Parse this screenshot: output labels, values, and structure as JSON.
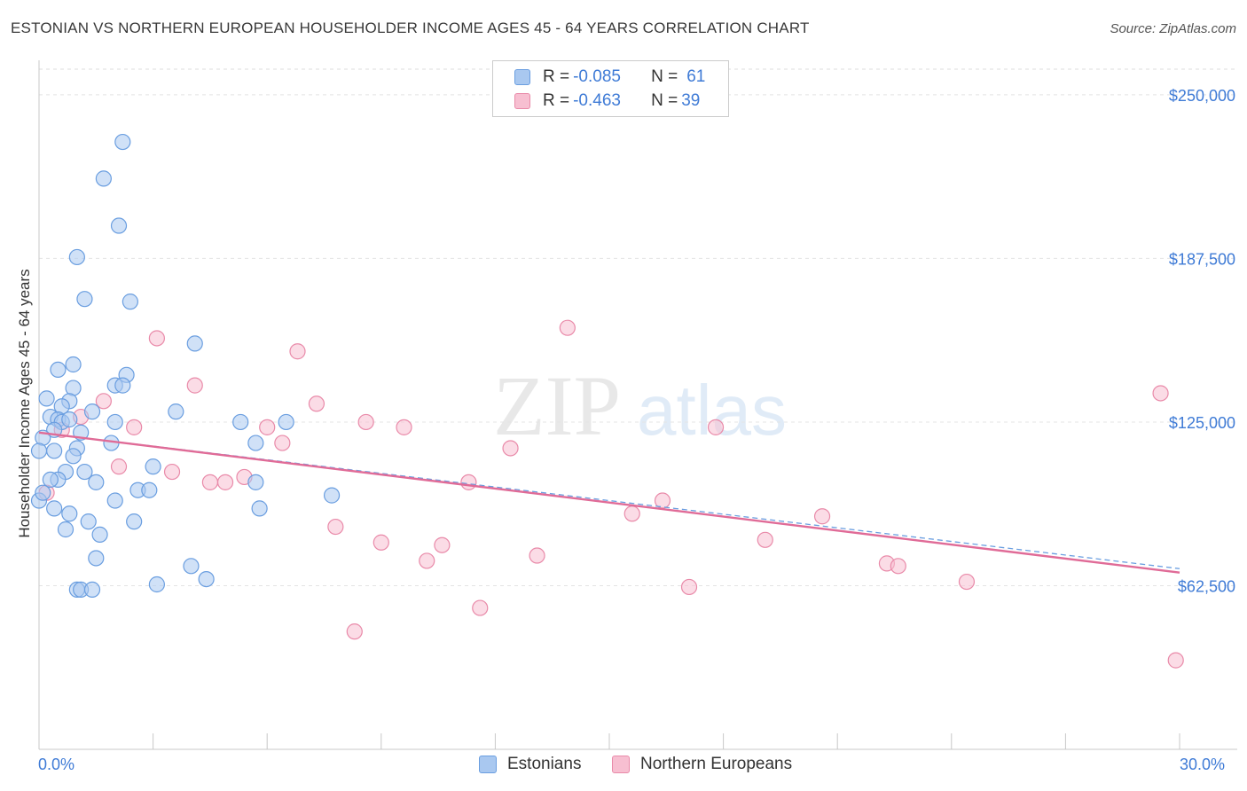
{
  "title": "ESTONIAN VS NORTHERN EUROPEAN HOUSEHOLDER INCOME AGES 45 - 64 YEARS CORRELATION CHART",
  "source": "Source: ZipAtlas.com",
  "watermark": {
    "zip": "ZIP",
    "atlas": "atlas"
  },
  "legend": {
    "rows": [
      {
        "r_label": "R = ",
        "r_value": "-0.085",
        "n_label": "N = ",
        "n_value": "61"
      },
      {
        "r_label": "R = ",
        "r_value": "-0.463",
        "n_label": "N = ",
        "n_value": "39"
      }
    ]
  },
  "bottom_legend": {
    "estonians": "Estonians",
    "northern": "Northern Europeans"
  },
  "colors": {
    "blue_fill": "#a9c8f0",
    "blue_stroke": "#6a9ee0",
    "pink_fill": "#f7bfd1",
    "pink_stroke": "#e98aa9",
    "pink_line": "#e06b97",
    "blue_line": "#6a9ee0",
    "axis_label": "#3f7bd6"
  },
  "chart_data": {
    "type": "scatter",
    "title": "ESTONIAN VS NORTHERN EUROPEAN HOUSEHOLDER INCOME AGES 45 - 64 YEARS CORRELATION CHART",
    "xlabel": "",
    "ylabel": "Householder Income Ages 45 - 64 years",
    "xlim": [
      0,
      30
    ],
    "ylim": [
      0,
      262500
    ],
    "x_tick_labels": [
      "0.0%",
      "30.0%"
    ],
    "y_ticks": [
      62500,
      125000,
      187500,
      250000
    ],
    "y_tick_labels": [
      "$62,500",
      "$125,000",
      "$187,500",
      "$250,000"
    ],
    "series": [
      {
        "name": "Estonians",
        "r": -0.085,
        "n": 61,
        "trend": {
          "x": [
            0,
            30
          ],
          "y": [
            121000,
            69000
          ]
        },
        "points": [
          [
            2.2,
            232000
          ],
          [
            1.7,
            218000
          ],
          [
            2.1,
            200000
          ],
          [
            1.0,
            188000
          ],
          [
            1.2,
            172000
          ],
          [
            2.4,
            171000
          ],
          [
            4.1,
            155000
          ],
          [
            0.5,
            145000
          ],
          [
            0.9,
            147000
          ],
          [
            2.3,
            143000
          ],
          [
            2.0,
            139000
          ],
          [
            2.2,
            139000
          ],
          [
            0.9,
            138000
          ],
          [
            0.2,
            134000
          ],
          [
            0.8,
            133000
          ],
          [
            0.6,
            131000
          ],
          [
            3.6,
            129000
          ],
          [
            1.4,
            129000
          ],
          [
            0.3,
            127000
          ],
          [
            0.5,
            126000
          ],
          [
            0.6,
            125000
          ],
          [
            0.8,
            126000
          ],
          [
            2.0,
            125000
          ],
          [
            5.3,
            125000
          ],
          [
            6.5,
            125000
          ],
          [
            0.4,
            122000
          ],
          [
            1.1,
            121000
          ],
          [
            0.1,
            119000
          ],
          [
            1.9,
            117000
          ],
          [
            5.7,
            117000
          ],
          [
            1.0,
            115000
          ],
          [
            0.4,
            114000
          ],
          [
            0.0,
            114000
          ],
          [
            0.9,
            112000
          ],
          [
            3.0,
            108000
          ],
          [
            1.2,
            106000
          ],
          [
            0.7,
            106000
          ],
          [
            0.5,
            103000
          ],
          [
            1.5,
            102000
          ],
          [
            0.3,
            103000
          ],
          [
            5.7,
            102000
          ],
          [
            2.6,
            99000
          ],
          [
            2.9,
            99000
          ],
          [
            7.7,
            97000
          ],
          [
            2.0,
            95000
          ],
          [
            0.0,
            95000
          ],
          [
            0.4,
            92000
          ],
          [
            5.8,
            92000
          ],
          [
            0.8,
            90000
          ],
          [
            1.3,
            87000
          ],
          [
            2.5,
            87000
          ],
          [
            0.7,
            84000
          ],
          [
            1.6,
            82000
          ],
          [
            1.5,
            73000
          ],
          [
            4.0,
            70000
          ],
          [
            4.4,
            65000
          ],
          [
            3.1,
            63000
          ],
          [
            1.0,
            61000
          ],
          [
            1.1,
            61000
          ],
          [
            1.4,
            61000
          ],
          [
            0.1,
            98000
          ]
        ]
      },
      {
        "name": "Northern Europeans",
        "r": -0.463,
        "n": 39,
        "trend": {
          "x": [
            0,
            30
          ],
          "y": [
            121000,
            67500
          ]
        },
        "points": [
          [
            0.2,
            98000
          ],
          [
            0.6,
            122000
          ],
          [
            1.1,
            127000
          ],
          [
            1.7,
            133000
          ],
          [
            2.1,
            108000
          ],
          [
            2.5,
            123000
          ],
          [
            3.1,
            157000
          ],
          [
            3.5,
            106000
          ],
          [
            4.1,
            139000
          ],
          [
            4.5,
            102000
          ],
          [
            4.9,
            102000
          ],
          [
            5.4,
            104000
          ],
          [
            6.0,
            123000
          ],
          [
            6.4,
            117000
          ],
          [
            6.8,
            152000
          ],
          [
            7.3,
            132000
          ],
          [
            7.8,
            85000
          ],
          [
            8.3,
            45000
          ],
          [
            8.6,
            125000
          ],
          [
            9.0,
            79000
          ],
          [
            9.6,
            123000
          ],
          [
            10.2,
            72000
          ],
          [
            10.6,
            78000
          ],
          [
            11.3,
            102000
          ],
          [
            11.6,
            54000
          ],
          [
            12.4,
            115000
          ],
          [
            13.1,
            74000
          ],
          [
            13.9,
            161000
          ],
          [
            15.6,
            90000
          ],
          [
            16.4,
            95000
          ],
          [
            17.1,
            62000
          ],
          [
            17.8,
            123000
          ],
          [
            19.1,
            80000
          ],
          [
            20.6,
            89000
          ],
          [
            22.3,
            71000
          ],
          [
            22.6,
            70000
          ],
          [
            24.4,
            64000
          ],
          [
            29.5,
            136000
          ],
          [
            29.9,
            34000
          ]
        ]
      }
    ]
  }
}
